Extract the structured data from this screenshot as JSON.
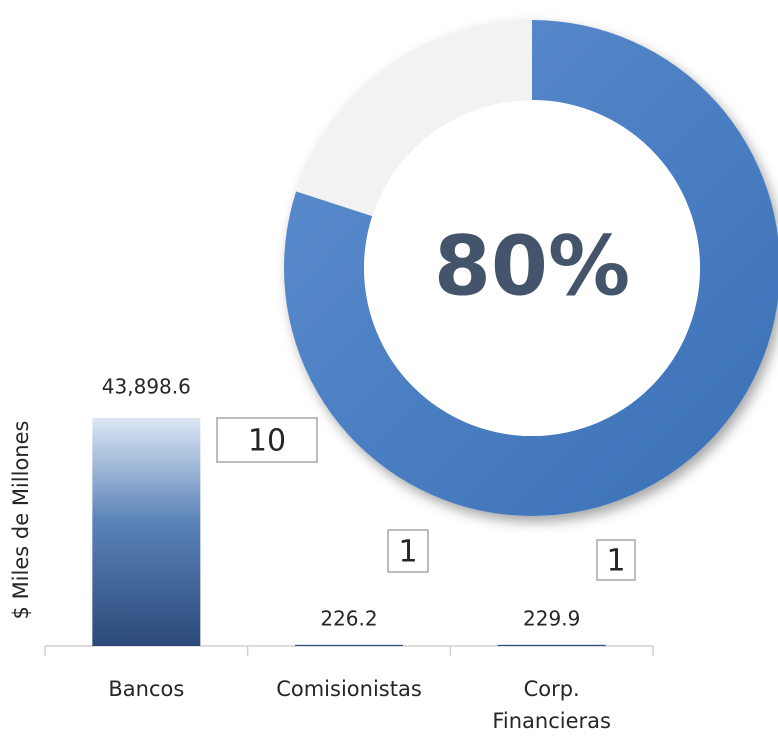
{
  "chart_data": [
    {
      "type": "bar",
      "y_label": "$ Miles de Millones",
      "categories": [
        "Bancos",
        "Comisionistas",
        "Corp. Financieras"
      ],
      "values": [
        43898.6,
        226.2,
        229.9
      ],
      "value_labels": [
        "43,898.6",
        "226.2",
        "229.9"
      ],
      "counts": [
        10,
        1,
        1
      ],
      "color": "#2e4f80"
    },
    {
      "type": "pie",
      "values": [
        80,
        20
      ],
      "colors": [
        "#3f76bf",
        "#f2f2f2"
      ],
      "center_label": "80%"
    }
  ]
}
